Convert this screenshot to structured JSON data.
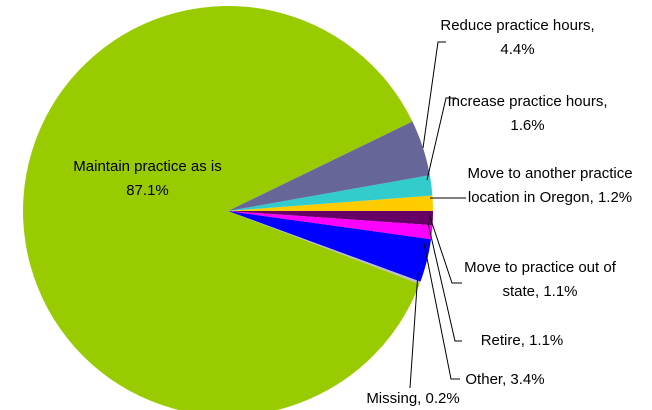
{
  "chart_data": {
    "type": "pie",
    "values": [
      87.1,
      4.4,
      1.6,
      1.2,
      1.1,
      1.1,
      3.4,
      0.2
    ],
    "value_labels": [
      "Maintain practice as is 87.1%",
      "Reduce practice hours, 4.4%",
      "Increase practice hours, 1.6%",
      "Move to another practice location in Oregon, 1.2%",
      "Move to practice out of state, 1.1%",
      "Retire, 1.1%",
      "Other, 3.4%",
      "Missing, 0.2%"
    ],
    "colors": [
      "#99cc00",
      "#666699",
      "#33cccc",
      "#ffcc00",
      "#660066",
      "#ff00ff",
      "#0000ff",
      "#c0c0c0"
    ]
  }
}
